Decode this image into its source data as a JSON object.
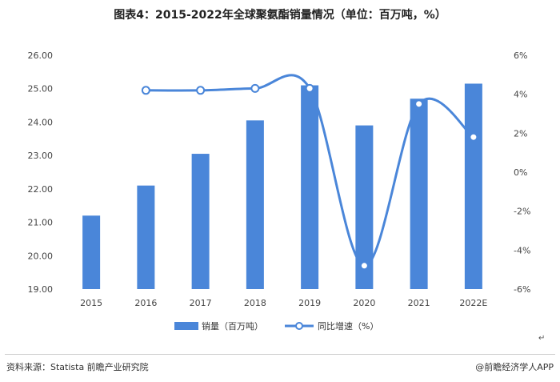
{
  "title": "图表4：2015-2022年全球聚氨酯销量情况（单位：百万吨，%）",
  "footer": {
    "source": "资料来源：Statista 前瞻产业研究院",
    "brand": "@前瞻经济学人APP"
  },
  "return_mark": "↵",
  "chart_data": {
    "type": "bar+line",
    "categories": [
      "2015",
      "2016",
      "2017",
      "2018",
      "2019",
      "2020",
      "2021",
      "2022E"
    ],
    "series": [
      {
        "name": "销量（百万吨）",
        "type": "bar",
        "axis": "left",
        "values": [
          21.2,
          22.1,
          23.05,
          24.05,
          25.1,
          23.9,
          24.7,
          25.15
        ]
      },
      {
        "name": "同比增速（%）",
        "type": "line",
        "axis": "right",
        "values": [
          null,
          4.2,
          4.2,
          4.3,
          4.3,
          -4.8,
          3.5,
          1.8
        ]
      }
    ],
    "ylim_left": [
      19,
      26
    ],
    "yticks_left": [
      "19.00",
      "20.00",
      "21.00",
      "22.00",
      "23.00",
      "24.00",
      "25.00",
      "26.00"
    ],
    "ylim_right": [
      -6,
      6
    ],
    "yticks_right": [
      "-6%",
      "-4%",
      "-2%",
      "0%",
      "2%",
      "4%",
      "6%"
    ],
    "grid": false,
    "legend_position": "bottom",
    "colors": {
      "bar": "#4a86d9",
      "line": "#4a86d9",
      "marker_fill": "#ffffff"
    }
  }
}
